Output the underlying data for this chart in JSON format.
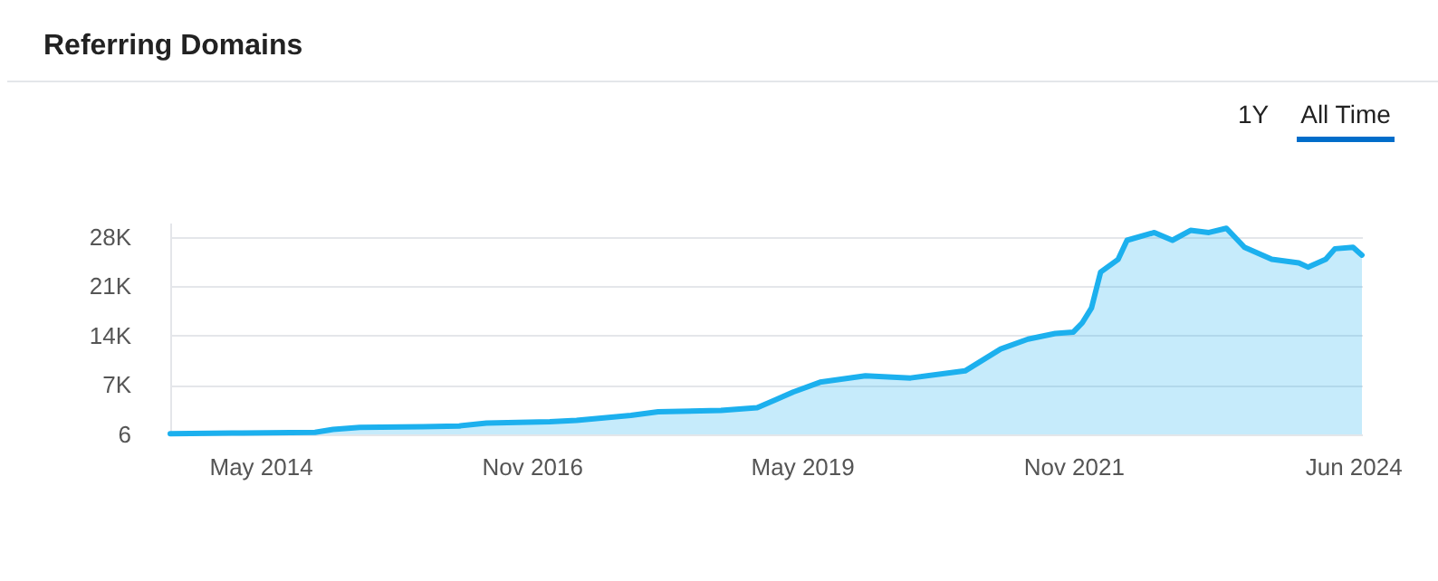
{
  "chart_data": {
    "type": "area",
    "title": "Referring Domains",
    "annotations": [
      "1Y",
      "All Time"
    ],
    "x": [
      "2013-07",
      "2014-03",
      "2014-11",
      "2015-01",
      "2015-04",
      "2015-11",
      "2016-03",
      "2016-06",
      "2017-01",
      "2017-04",
      "2017-10",
      "2018-01",
      "2018-08",
      "2018-12",
      "2019-02",
      "2019-04",
      "2019-07",
      "2019-12",
      "2020-05",
      "2020-11",
      "2021-03",
      "2021-06",
      "2021-09",
      "2021-11",
      "2021-12",
      "2022-01",
      "2022-02",
      "2022-04",
      "2022-05",
      "2022-08",
      "2022-10",
      "2022-12",
      "2023-02",
      "2023-04",
      "2023-06",
      "2023-09",
      "2023-12",
      "2024-01",
      "2024-03",
      "2024-04",
      "2024-06",
      "2024-07"
    ],
    "series": [
      {
        "color": "#1cb0ee",
        "values": [
          100,
          200,
          300,
          700,
          1000,
          1100,
          1200,
          1600,
          1800,
          2000,
          2700,
          3200,
          3400,
          3800,
          4900,
          6000,
          7400,
          8300,
          8000,
          9000,
          12100,
          13500,
          14300,
          14500,
          15800,
          17900,
          23000,
          24800,
          27500,
          28600,
          27500,
          28900,
          28600,
          29200,
          26500,
          24800,
          24300,
          23700,
          24800,
          26300,
          26500,
          25400
        ]
      }
    ],
    "xlim": [
      "2013-07",
      "2024-07"
    ],
    "xticks": [
      {
        "value": "2014-05",
        "label": "May 2014"
      },
      {
        "value": "2016-11",
        "label": "Nov 2016"
      },
      {
        "value": "2019-05",
        "label": "May 2019"
      },
      {
        "value": "2021-11",
        "label": "Nov 2021"
      },
      {
        "value": "2024-06",
        "label": "Jun 2024"
      }
    ],
    "ylim": [
      6,
      30000
    ],
    "yticks": [
      6,
      {
        "value": 7000,
        "label": "7K"
      },
      {
        "value": 14000,
        "label": "14K"
      },
      {
        "value": 21000,
        "label": "21K"
      },
      {
        "value": 28000,
        "label": "28K"
      }
    ],
    "grid": "y"
  }
}
